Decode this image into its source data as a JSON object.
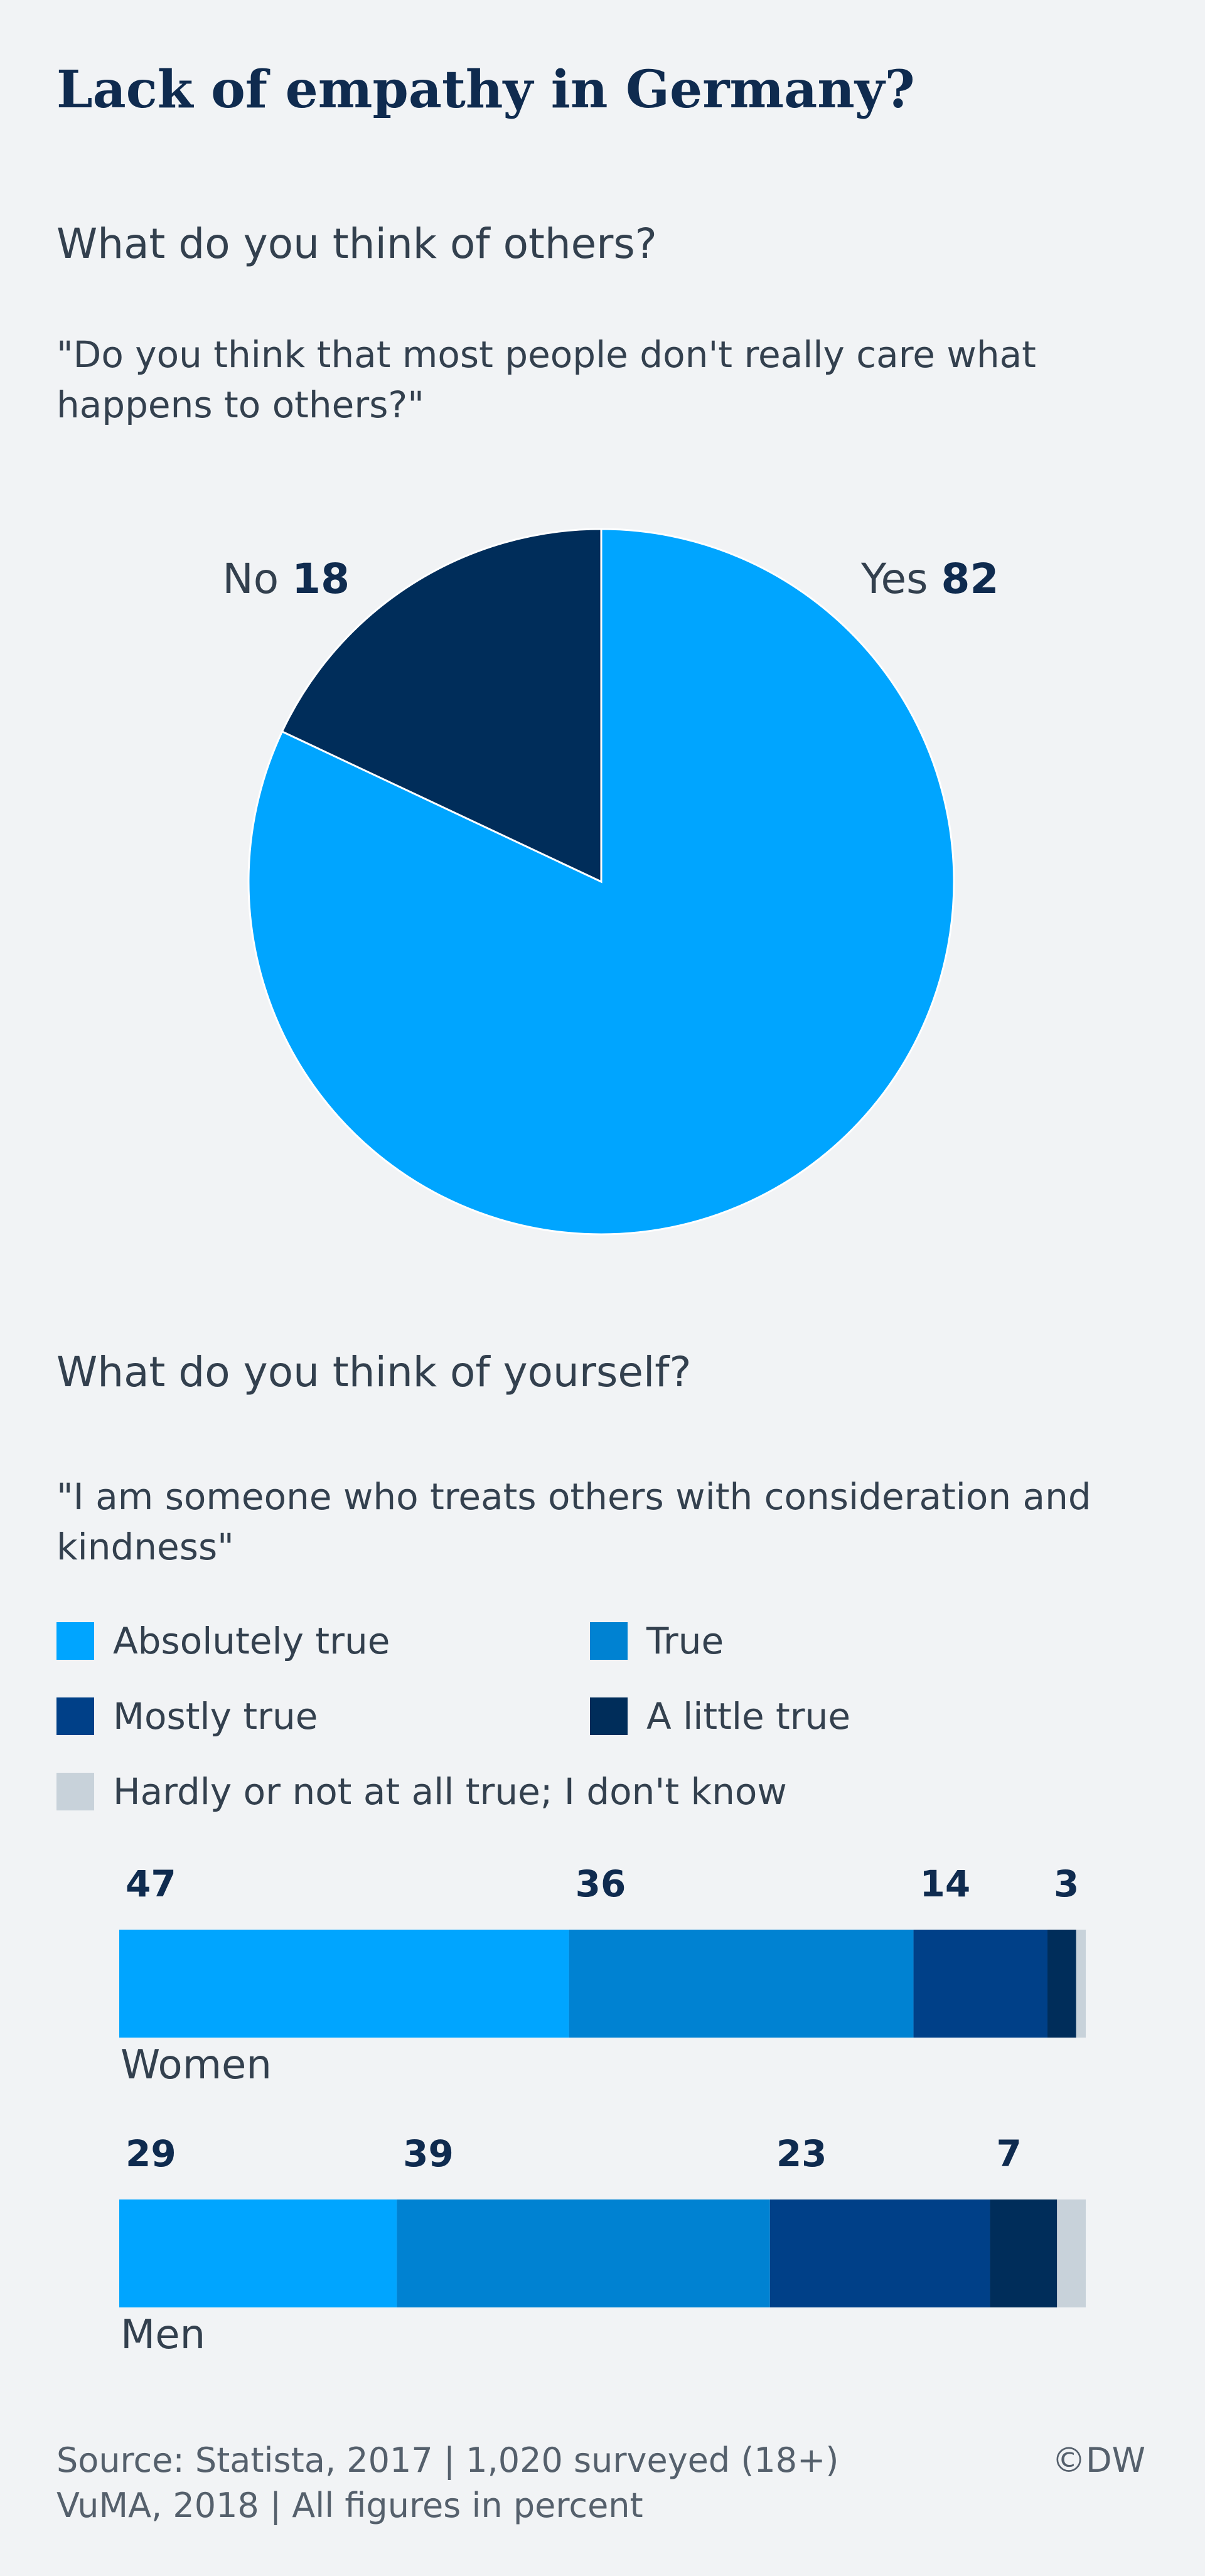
{
  "title": "Lack of empathy in Germany?",
  "section1": {
    "heading": "What do you think of others?",
    "question": "\"Do you think that most people don't really care what happens to others?\""
  },
  "section2": {
    "heading": "What do you think of yourself?",
    "question": "\"I am someone who treats others with consideration and kindness\""
  },
  "footer": {
    "source_line1": "Source: Statista, 2017 | 1,020 surveyed (18+)",
    "source_line2": "VuMA, 2018 | All figures in percent",
    "credit": "©DW"
  },
  "chart_data": [
    {
      "type": "pie",
      "slices": [
        {
          "label": "Yes",
          "value": 82,
          "color": "#00a5ff"
        },
        {
          "label": "No",
          "value": 18,
          "color": "#002d5a"
        }
      ]
    },
    {
      "type": "bar",
      "orientation": "horizontal",
      "stacked": true,
      "categories": [
        "Women",
        "Men"
      ],
      "series": [
        {
          "name": "Absolutely true",
          "values": [
            47,
            29
          ],
          "color": "#00a5ff"
        },
        {
          "name": "True",
          "values": [
            36,
            39
          ],
          "color": "#0082d2"
        },
        {
          "name": "Mostly true",
          "values": [
            14,
            23
          ],
          "color": "#004088"
        },
        {
          "name": "A little true",
          "values": [
            3,
            7
          ],
          "color": "#002d5a"
        },
        {
          "name": "Hardly or not at all true; I don't know",
          "values": [
            1,
            3
          ],
          "color": "#c8d2da"
        }
      ],
      "data_labels": [
        [
          "47",
          "36",
          "14",
          "3",
          ""
        ],
        [
          "29",
          "39",
          "23",
          "7",
          ""
        ]
      ],
      "legend_position": "top",
      "xlim": [
        0,
        100
      ]
    }
  ]
}
